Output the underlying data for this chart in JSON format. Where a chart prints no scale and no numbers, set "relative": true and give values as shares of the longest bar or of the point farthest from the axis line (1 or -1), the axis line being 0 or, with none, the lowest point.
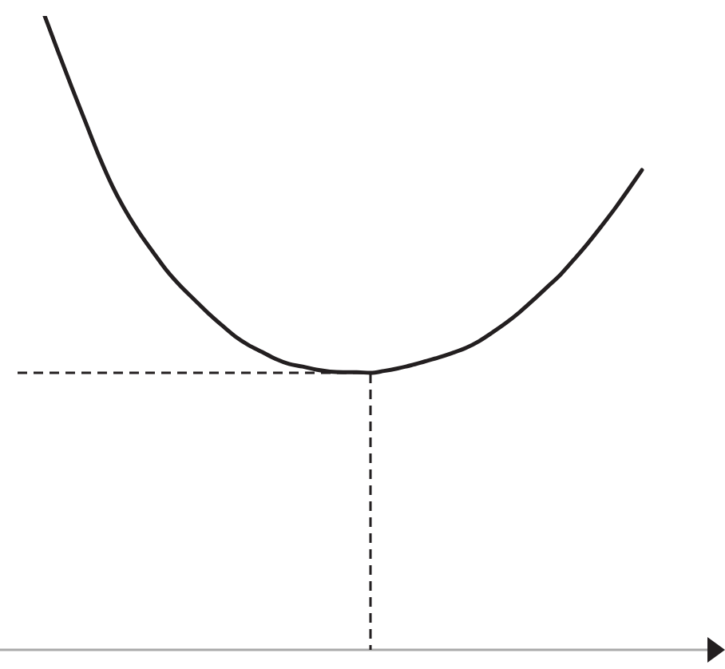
{
  "chart_data": {
    "type": "line",
    "relative": true,
    "marker": "none",
    "line_style": "solid",
    "categories": [
      null,
      null,
      null,
      null,
      null,
      null,
      null,
      null,
      null,
      null,
      null,
      null,
      null,
      null,
      null,
      null,
      null,
      null,
      null,
      null,
      null,
      null,
      null,
      null,
      null,
      null,
      null,
      null,
      null,
      null,
      null,
      null,
      null,
      null,
      null,
      null,
      null,
      null,
      null,
      null,
      null,
      null,
      null,
      null,
      null,
      null,
      null
    ],
    "series": [
      {
        "color": "#231f20",
        "values": [
          null,
          null,
          1.0,
          0.943,
          0.887,
          0.833,
          0.779,
          0.731,
          0.691,
          0.657,
          0.627,
          0.598,
          0.574,
          0.553,
          0.532,
          0.513,
          0.495,
          0.481,
          0.47,
          0.459,
          0.451,
          0.447,
          0.442,
          0.439,
          0.438,
          0.438,
          0.437,
          0.44,
          0.444,
          0.449,
          0.455,
          0.461,
          0.468,
          0.476,
          0.487,
          0.501,
          0.516,
          0.533,
          0.552,
          0.572,
          0.592,
          0.616,
          0.641,
          0.668,
          0.696,
          0.726,
          0.757
        ]
      }
    ],
    "ref_lines": [
      {
        "axis": "y",
        "value": 0.437,
        "line_style": "dashed",
        "color": "#231f20"
      }
    ]
  }
}
